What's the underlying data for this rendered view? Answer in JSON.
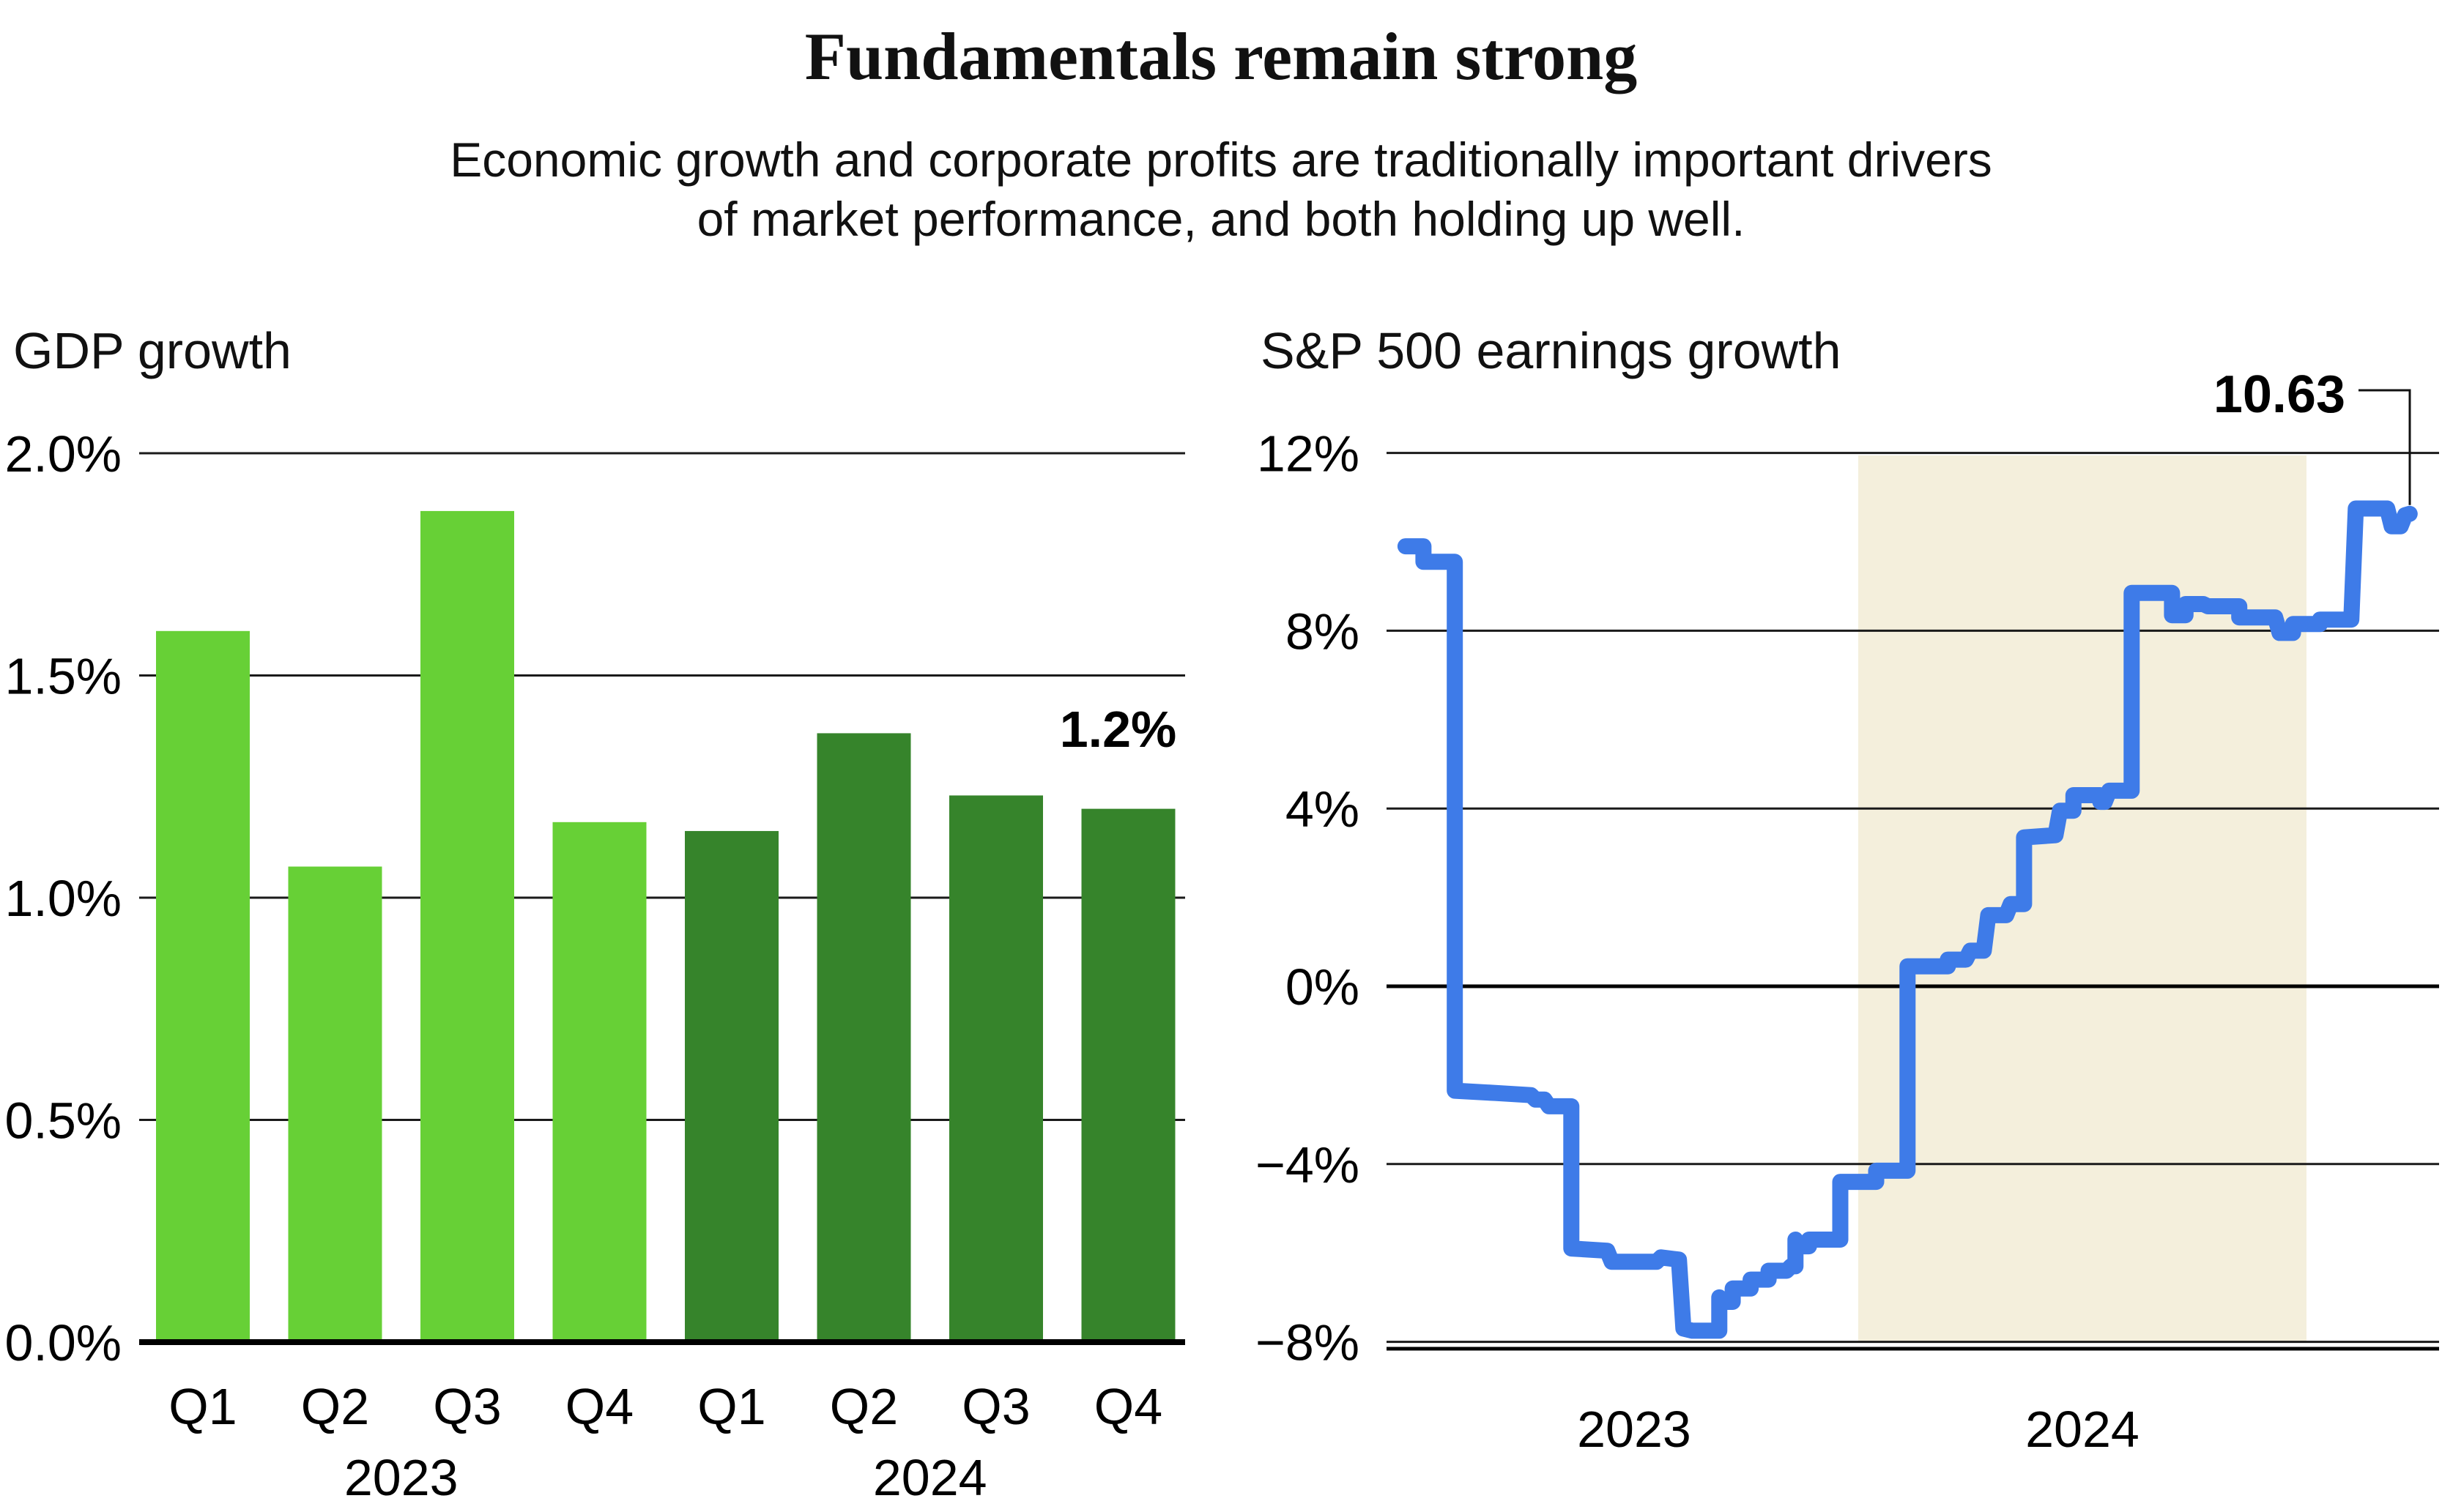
{
  "header": {
    "title": "Fundamentals remain strong",
    "subtitle_line1": "Economic growth and corporate profits are traditionally important drivers",
    "subtitle_line2": "of market performance, and both holding up well."
  },
  "chart_data": [
    {
      "type": "bar",
      "title": "GDP growth",
      "xlabel": "",
      "ylabel": "",
      "ylim": [
        0,
        2
      ],
      "grid": true,
      "legend": "none",
      "yticks": [
        {
          "value": 0.0,
          "label": "0.0%"
        },
        {
          "value": 0.5,
          "label": "0.5%"
        },
        {
          "value": 1.0,
          "label": "1.0%"
        },
        {
          "value": 1.5,
          "label": "1.5%"
        },
        {
          "value": 2.0,
          "label": "2.0%"
        }
      ],
      "categories": [
        "Q1",
        "Q2",
        "Q3",
        "Q4",
        "Q1",
        "Q2",
        "Q3",
        "Q4"
      ],
      "values": [
        1.6,
        1.07,
        1.87,
        1.17,
        1.15,
        1.37,
        1.23,
        1.2
      ],
      "series_groups": [
        {
          "label": "2023",
          "color": "#67D036",
          "bar_indexes": [
            0,
            1,
            2,
            3
          ]
        },
        {
          "label": "2024",
          "color": "#36842B",
          "bar_indexes": [
            4,
            5,
            6,
            7
          ]
        }
      ],
      "annotation": {
        "text": "1.2%",
        "bar_index": 7,
        "value": 1.2
      }
    },
    {
      "type": "line",
      "title": "S&P 500 earnings growth",
      "xlabel": "",
      "ylabel": "",
      "ylim": [
        -8,
        12
      ],
      "xlim": [
        2022.95,
        2025.3
      ],
      "grid": true,
      "legend": "none",
      "line_color": "#3E7BE8",
      "yticks": [
        {
          "value": 12,
          "label": "12%"
        },
        {
          "value": 8,
          "label": "8%"
        },
        {
          "value": 4,
          "label": "4%"
        },
        {
          "value": 0,
          "label": "0%"
        },
        {
          "value": -4,
          "label": "−4%"
        },
        {
          "value": -8,
          "label": "−8%"
        }
      ],
      "x_year_labels": [
        {
          "t": 2023.5,
          "label": "2023"
        },
        {
          "t": 2024.5,
          "label": "2024"
        }
      ],
      "shaded_band": {
        "from": 2024.0,
        "to": 2025.0,
        "color": "#F4EFDC"
      },
      "callout": {
        "text": "10.63",
        "value": 10.63
      },
      "points": [
        [
          2022.99,
          9.9
        ],
        [
          2023.03,
          9.9
        ],
        [
          2023.03,
          9.55
        ],
        [
          2023.1,
          9.55
        ],
        [
          2023.1,
          -2.35
        ],
        [
          2023.19,
          -2.4
        ],
        [
          2023.27,
          -2.45
        ],
        [
          2023.28,
          -2.55
        ],
        [
          2023.3,
          -2.55
        ],
        [
          2023.31,
          -2.7
        ],
        [
          2023.36,
          -2.7
        ],
        [
          2023.36,
          -5.9
        ],
        [
          2023.44,
          -5.95
        ],
        [
          2023.45,
          -6.2
        ],
        [
          2023.55,
          -6.2
        ],
        [
          2023.56,
          -6.1
        ],
        [
          2023.6,
          -6.15
        ],
        [
          2023.61,
          -7.7
        ],
        [
          2023.63,
          -7.75
        ],
        [
          2023.69,
          -7.75
        ],
        [
          2023.69,
          -7.0
        ],
        [
          2023.7,
          -7.1
        ],
        [
          2023.72,
          -7.1
        ],
        [
          2023.72,
          -6.8
        ],
        [
          2023.76,
          -6.8
        ],
        [
          2023.76,
          -6.6
        ],
        [
          2023.8,
          -6.6
        ],
        [
          2023.8,
          -6.4
        ],
        [
          2023.84,
          -6.4
        ],
        [
          2023.85,
          -6.3
        ],
        [
          2023.86,
          -6.3
        ],
        [
          2023.86,
          -5.7
        ],
        [
          2023.87,
          -5.85
        ],
        [
          2023.89,
          -5.85
        ],
        [
          2023.89,
          -5.7
        ],
        [
          2023.96,
          -5.7
        ],
        [
          2023.96,
          -4.4
        ],
        [
          2024.04,
          -4.4
        ],
        [
          2024.04,
          -4.15
        ],
        [
          2024.11,
          -4.15
        ],
        [
          2024.11,
          0.45
        ],
        [
          2024.2,
          0.45
        ],
        [
          2024.2,
          0.6
        ],
        [
          2024.24,
          0.6
        ],
        [
          2024.25,
          0.8
        ],
        [
          2024.28,
          0.8
        ],
        [
          2024.29,
          1.6
        ],
        [
          2024.33,
          1.6
        ],
        [
          2024.34,
          1.85
        ],
        [
          2024.37,
          1.85
        ],
        [
          2024.37,
          3.35
        ],
        [
          2024.44,
          3.4
        ],
        [
          2024.45,
          3.95
        ],
        [
          2024.48,
          3.95
        ],
        [
          2024.48,
          4.3
        ],
        [
          2024.54,
          4.3
        ],
        [
          2024.54,
          4.15
        ],
        [
          2024.55,
          4.15
        ],
        [
          2024.56,
          4.4
        ],
        [
          2024.61,
          4.4
        ],
        [
          2024.61,
          8.85
        ],
        [
          2024.7,
          8.85
        ],
        [
          2024.7,
          8.35
        ],
        [
          2024.73,
          8.35
        ],
        [
          2024.73,
          8.6
        ],
        [
          2024.77,
          8.6
        ],
        [
          2024.78,
          8.55
        ],
        [
          2024.85,
          8.55
        ],
        [
          2024.85,
          8.3
        ],
        [
          2024.93,
          8.3
        ],
        [
          2024.94,
          7.95
        ],
        [
          2024.97,
          7.95
        ],
        [
          2024.97,
          8.15
        ],
        [
          2025.03,
          8.15
        ],
        [
          2025.03,
          8.25
        ],
        [
          2025.1,
          8.25
        ],
        [
          2025.11,
          10.75
        ],
        [
          2025.18,
          10.75
        ],
        [
          2025.19,
          10.35
        ],
        [
          2025.21,
          10.35
        ],
        [
          2025.22,
          10.6
        ],
        [
          2025.23,
          10.63
        ]
      ]
    }
  ]
}
